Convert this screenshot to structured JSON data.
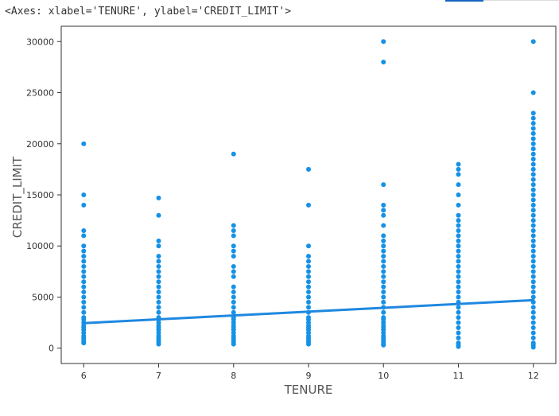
{
  "output_repr": "<Axes: xlabel='TENURE', ylabel='CREDIT_LIMIT'>",
  "colors": {
    "point": "#1592e6",
    "line": "#1f88e0",
    "axes": "#333333",
    "tab_active": "#1565c0"
  },
  "chart_data": {
    "type": "scatter",
    "xlabel": "TENURE",
    "ylabel": "CREDIT_LIMIT",
    "xlim": [
      5.7,
      12.3
    ],
    "ylim": [
      -1500,
      31500
    ],
    "xticks": [
      6,
      7,
      8,
      9,
      10,
      11,
      12
    ],
    "yticks": [
      0,
      5000,
      10000,
      15000,
      20000,
      25000,
      30000
    ],
    "grid": false,
    "legend": "none",
    "points": [
      {
        "x": 6,
        "y": [
          20000,
          15000,
          14000,
          11500,
          11000,
          10000,
          9500,
          9000,
          8500,
          8000,
          7500,
          7000,
          6500,
          6000,
          5500,
          5000,
          4500,
          4000,
          3500,
          3000,
          2800,
          2500,
          2200,
          2000,
          1800,
          1500,
          1200,
          1000,
          800,
          600,
          500
        ]
      },
      {
        "x": 7,
        "y": [
          14700,
          13000,
          10500,
          10000,
          9000,
          8500,
          8000,
          7500,
          7000,
          6500,
          6000,
          5500,
          5000,
          4500,
          4000,
          3500,
          3000,
          2800,
          2500,
          2200,
          2000,
          1800,
          1500,
          1200,
          1000,
          800,
          600,
          400
        ]
      },
      {
        "x": 8,
        "y": [
          19000,
          12000,
          11500,
          11000,
          10000,
          9500,
          9000,
          8000,
          7500,
          7000,
          6000,
          5500,
          5000,
          4500,
          4000,
          3500,
          3000,
          2800,
          2500,
          2200,
          2000,
          1800,
          1500,
          1200,
          1000,
          800,
          600,
          400
        ]
      },
      {
        "x": 9,
        "y": [
          17500,
          14000,
          10000,
          9000,
          8500,
          8000,
          7500,
          7000,
          6500,
          6000,
          5500,
          5000,
          4500,
          4000,
          3500,
          3000,
          2800,
          2500,
          2200,
          2000,
          1800,
          1500,
          1200,
          1000,
          800,
          600,
          400
        ]
      },
      {
        "x": 10,
        "y": [
          30000,
          28000,
          16000,
          14000,
          13500,
          13000,
          12000,
          11000,
          10500,
          10000,
          9500,
          9000,
          8500,
          8000,
          7500,
          7000,
          6500,
          6000,
          5500,
          5000,
          4500,
          4000,
          3500,
          3000,
          2800,
          2500,
          2200,
          2000,
          1800,
          1500,
          1200,
          1000,
          800,
          600,
          400,
          300
        ]
      },
      {
        "x": 11,
        "y": [
          18000,
          17500,
          17000,
          16000,
          15000,
          14000,
          13000,
          12500,
          12000,
          11500,
          11000,
          10500,
          10000,
          9500,
          9000,
          8500,
          8000,
          7500,
          7000,
          6500,
          6000,
          5500,
          5000,
          4500,
          4000,
          3500,
          3000,
          2500,
          2000,
          1500,
          1000,
          500,
          300,
          150
        ]
      },
      {
        "x": 12,
        "y": [
          30000,
          25000,
          23000,
          22500,
          22000,
          21500,
          21000,
          20500,
          20000,
          19500,
          19000,
          18500,
          18000,
          17500,
          17000,
          16500,
          16000,
          15500,
          15000,
          14500,
          14000,
          13500,
          13000,
          12500,
          12000,
          11500,
          11000,
          10500,
          10000,
          9500,
          9000,
          8500,
          8000,
          7500,
          7000,
          6500,
          6000,
          5500,
          5000,
          4500,
          4000,
          3500,
          3000,
          2500,
          2000,
          1500,
          1000,
          500,
          300,
          100
        ]
      }
    ],
    "regression_line": {
      "x": [
        6,
        12
      ],
      "y": [
        2450,
        4700
      ]
    }
  }
}
